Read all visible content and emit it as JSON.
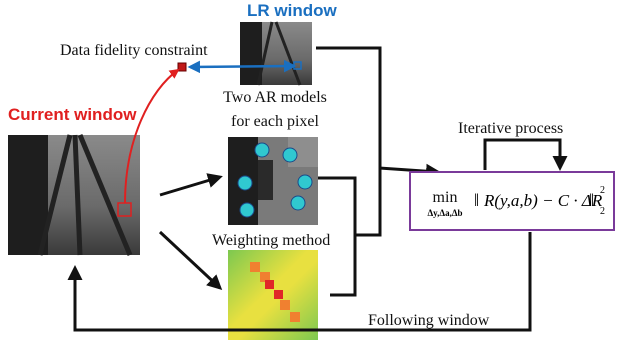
{
  "labels": {
    "lr_window": "LR window",
    "data_fidelity": "Data fidelity constraint",
    "current_window": "Current window",
    "ar_models_line1": "Two AR models",
    "ar_models_line2": "for each pixel",
    "iterative": "Iterative process",
    "weighting": "Weighting method",
    "following": "Following window"
  },
  "formula": {
    "operator": "min",
    "operator_subscript": "Δy,Δa,Δb",
    "body": "R(y,a,b) − C · ΔR",
    "norm_superscript": "2",
    "norm_subscript": "2"
  }
}
